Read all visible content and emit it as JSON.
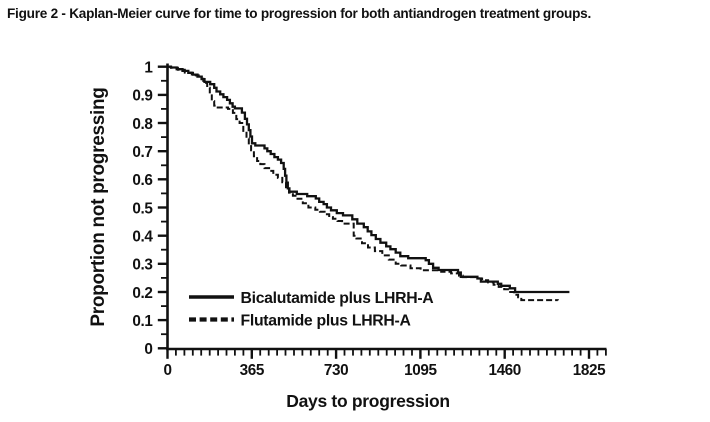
{
  "title": "Figure 2 - Kaplan-Meier curve for time to progression for both antiandrogen treatment groups.",
  "chart_data": {
    "type": "line",
    "subtype": "kaplan-meier-step",
    "title": "Figure 2 - Kaplan-Meier curve for time to progression for both antiandrogen treatment groups.",
    "xlabel": "Days to progression",
    "ylabel": "Proportion not progressing",
    "xlim": [
      0,
      1825
    ],
    "ylim": [
      0,
      1
    ],
    "x_ticks": [
      0,
      365,
      730,
      1095,
      1460,
      1825
    ],
    "y_ticks": [
      0,
      0.1,
      0.2,
      0.3,
      0.4,
      0.5,
      0.6,
      0.7,
      0.8,
      0.9,
      1
    ],
    "x_minor_tick_interval": 36.5,
    "y_minor_tick_interval": 0.05,
    "grid": false,
    "line_color": "#111111",
    "legend_position": "inside-lower-left",
    "series": [
      {
        "name": "Bicalutamide plus LHRH-A",
        "slug": "bicalutamide",
        "line_style": "solid",
        "color": "#111111",
        "points": [
          [
            0,
            1.0
          ],
          [
            15,
            0.997
          ],
          [
            40,
            0.991
          ],
          [
            65,
            0.985
          ],
          [
            90,
            0.978
          ],
          [
            110,
            0.972
          ],
          [
            130,
            0.965
          ],
          [
            148,
            0.956
          ],
          [
            160,
            0.946
          ],
          [
            185,
            0.938
          ],
          [
            202,
            0.925
          ],
          [
            212,
            0.912
          ],
          [
            228,
            0.902
          ],
          [
            242,
            0.892
          ],
          [
            258,
            0.882
          ],
          [
            270,
            0.87
          ],
          [
            282,
            0.858
          ],
          [
            292,
            0.852
          ],
          [
            322,
            0.837
          ],
          [
            335,
            0.815
          ],
          [
            344,
            0.795
          ],
          [
            352,
            0.775
          ],
          [
            359,
            0.752
          ],
          [
            366,
            0.728
          ],
          [
            380,
            0.72
          ],
          [
            420,
            0.71
          ],
          [
            432,
            0.7
          ],
          [
            447,
            0.69
          ],
          [
            463,
            0.679
          ],
          [
            478,
            0.67
          ],
          [
            492,
            0.658
          ],
          [
            503,
            0.637
          ],
          [
            509,
            0.613
          ],
          [
            515,
            0.588
          ],
          [
            521,
            0.568
          ],
          [
            528,
            0.556
          ],
          [
            560,
            0.548
          ],
          [
            605,
            0.54
          ],
          [
            642,
            0.532
          ],
          [
            657,
            0.52
          ],
          [
            676,
            0.512
          ],
          [
            690,
            0.5
          ],
          [
            708,
            0.49
          ],
          [
            733,
            0.48
          ],
          [
            760,
            0.472
          ],
          [
            800,
            0.458
          ],
          [
            822,
            0.443
          ],
          [
            850,
            0.43
          ],
          [
            867,
            0.415
          ],
          [
            883,
            0.402
          ],
          [
            902,
            0.388
          ],
          [
            922,
            0.375
          ],
          [
            947,
            0.362
          ],
          [
            965,
            0.352
          ],
          [
            988,
            0.34
          ],
          [
            1008,
            0.327
          ],
          [
            1042,
            0.32
          ],
          [
            1118,
            0.313
          ],
          [
            1132,
            0.3
          ],
          [
            1150,
            0.286
          ],
          [
            1174,
            0.278
          ],
          [
            1258,
            0.269
          ],
          [
            1270,
            0.254
          ],
          [
            1342,
            0.248
          ],
          [
            1357,
            0.237
          ],
          [
            1430,
            0.229
          ],
          [
            1445,
            0.222
          ],
          [
            1482,
            0.213
          ],
          [
            1505,
            0.2
          ],
          [
            1740,
            0.2
          ]
        ]
      },
      {
        "name": "Flutamide plus LHRH-A",
        "slug": "flutamide",
        "line_style": "dashed",
        "color": "#111111",
        "points": [
          [
            0,
            1.0
          ],
          [
            15,
            0.996
          ],
          [
            45,
            0.989
          ],
          [
            75,
            0.979
          ],
          [
            105,
            0.969
          ],
          [
            135,
            0.957
          ],
          [
            155,
            0.942
          ],
          [
            172,
            0.925
          ],
          [
            183,
            0.905
          ],
          [
            192,
            0.878
          ],
          [
            202,
            0.862
          ],
          [
            212,
            0.855
          ],
          [
            262,
            0.85
          ],
          [
            283,
            0.836
          ],
          [
            298,
            0.814
          ],
          [
            312,
            0.8
          ],
          [
            328,
            0.772
          ],
          [
            342,
            0.745
          ],
          [
            352,
            0.722
          ],
          [
            362,
            0.703
          ],
          [
            374,
            0.682
          ],
          [
            388,
            0.665
          ],
          [
            402,
            0.654
          ],
          [
            420,
            0.64
          ],
          [
            440,
            0.63
          ],
          [
            458,
            0.616
          ],
          [
            478,
            0.605
          ],
          [
            497,
            0.59
          ],
          [
            513,
            0.572
          ],
          [
            526,
            0.553
          ],
          [
            543,
            0.542
          ],
          [
            563,
            0.531
          ],
          [
            586,
            0.515
          ],
          [
            610,
            0.5
          ],
          [
            640,
            0.492
          ],
          [
            660,
            0.485
          ],
          [
            680,
            0.476
          ],
          [
            700,
            0.466
          ],
          [
            716,
            0.46
          ],
          [
            736,
            0.452
          ],
          [
            756,
            0.443
          ],
          [
            806,
            0.4
          ],
          [
            818,
            0.39
          ],
          [
            842,
            0.373
          ],
          [
            868,
            0.358
          ],
          [
            898,
            0.345
          ],
          [
            930,
            0.33
          ],
          [
            958,
            0.315
          ],
          [
            988,
            0.3
          ],
          [
            1012,
            0.294
          ],
          [
            1052,
            0.284
          ],
          [
            1096,
            0.277
          ],
          [
            1185,
            0.272
          ],
          [
            1228,
            0.266
          ],
          [
            1262,
            0.258
          ],
          [
            1278,
            0.253
          ],
          [
            1348,
            0.248
          ],
          [
            1362,
            0.242
          ],
          [
            1388,
            0.234
          ],
          [
            1412,
            0.226
          ],
          [
            1434,
            0.218
          ],
          [
            1458,
            0.21
          ],
          [
            1478,
            0.2
          ],
          [
            1500,
            0.19
          ],
          [
            1518,
            0.181
          ],
          [
            1532,
            0.171
          ],
          [
            1690,
            0.17
          ]
        ]
      }
    ]
  }
}
